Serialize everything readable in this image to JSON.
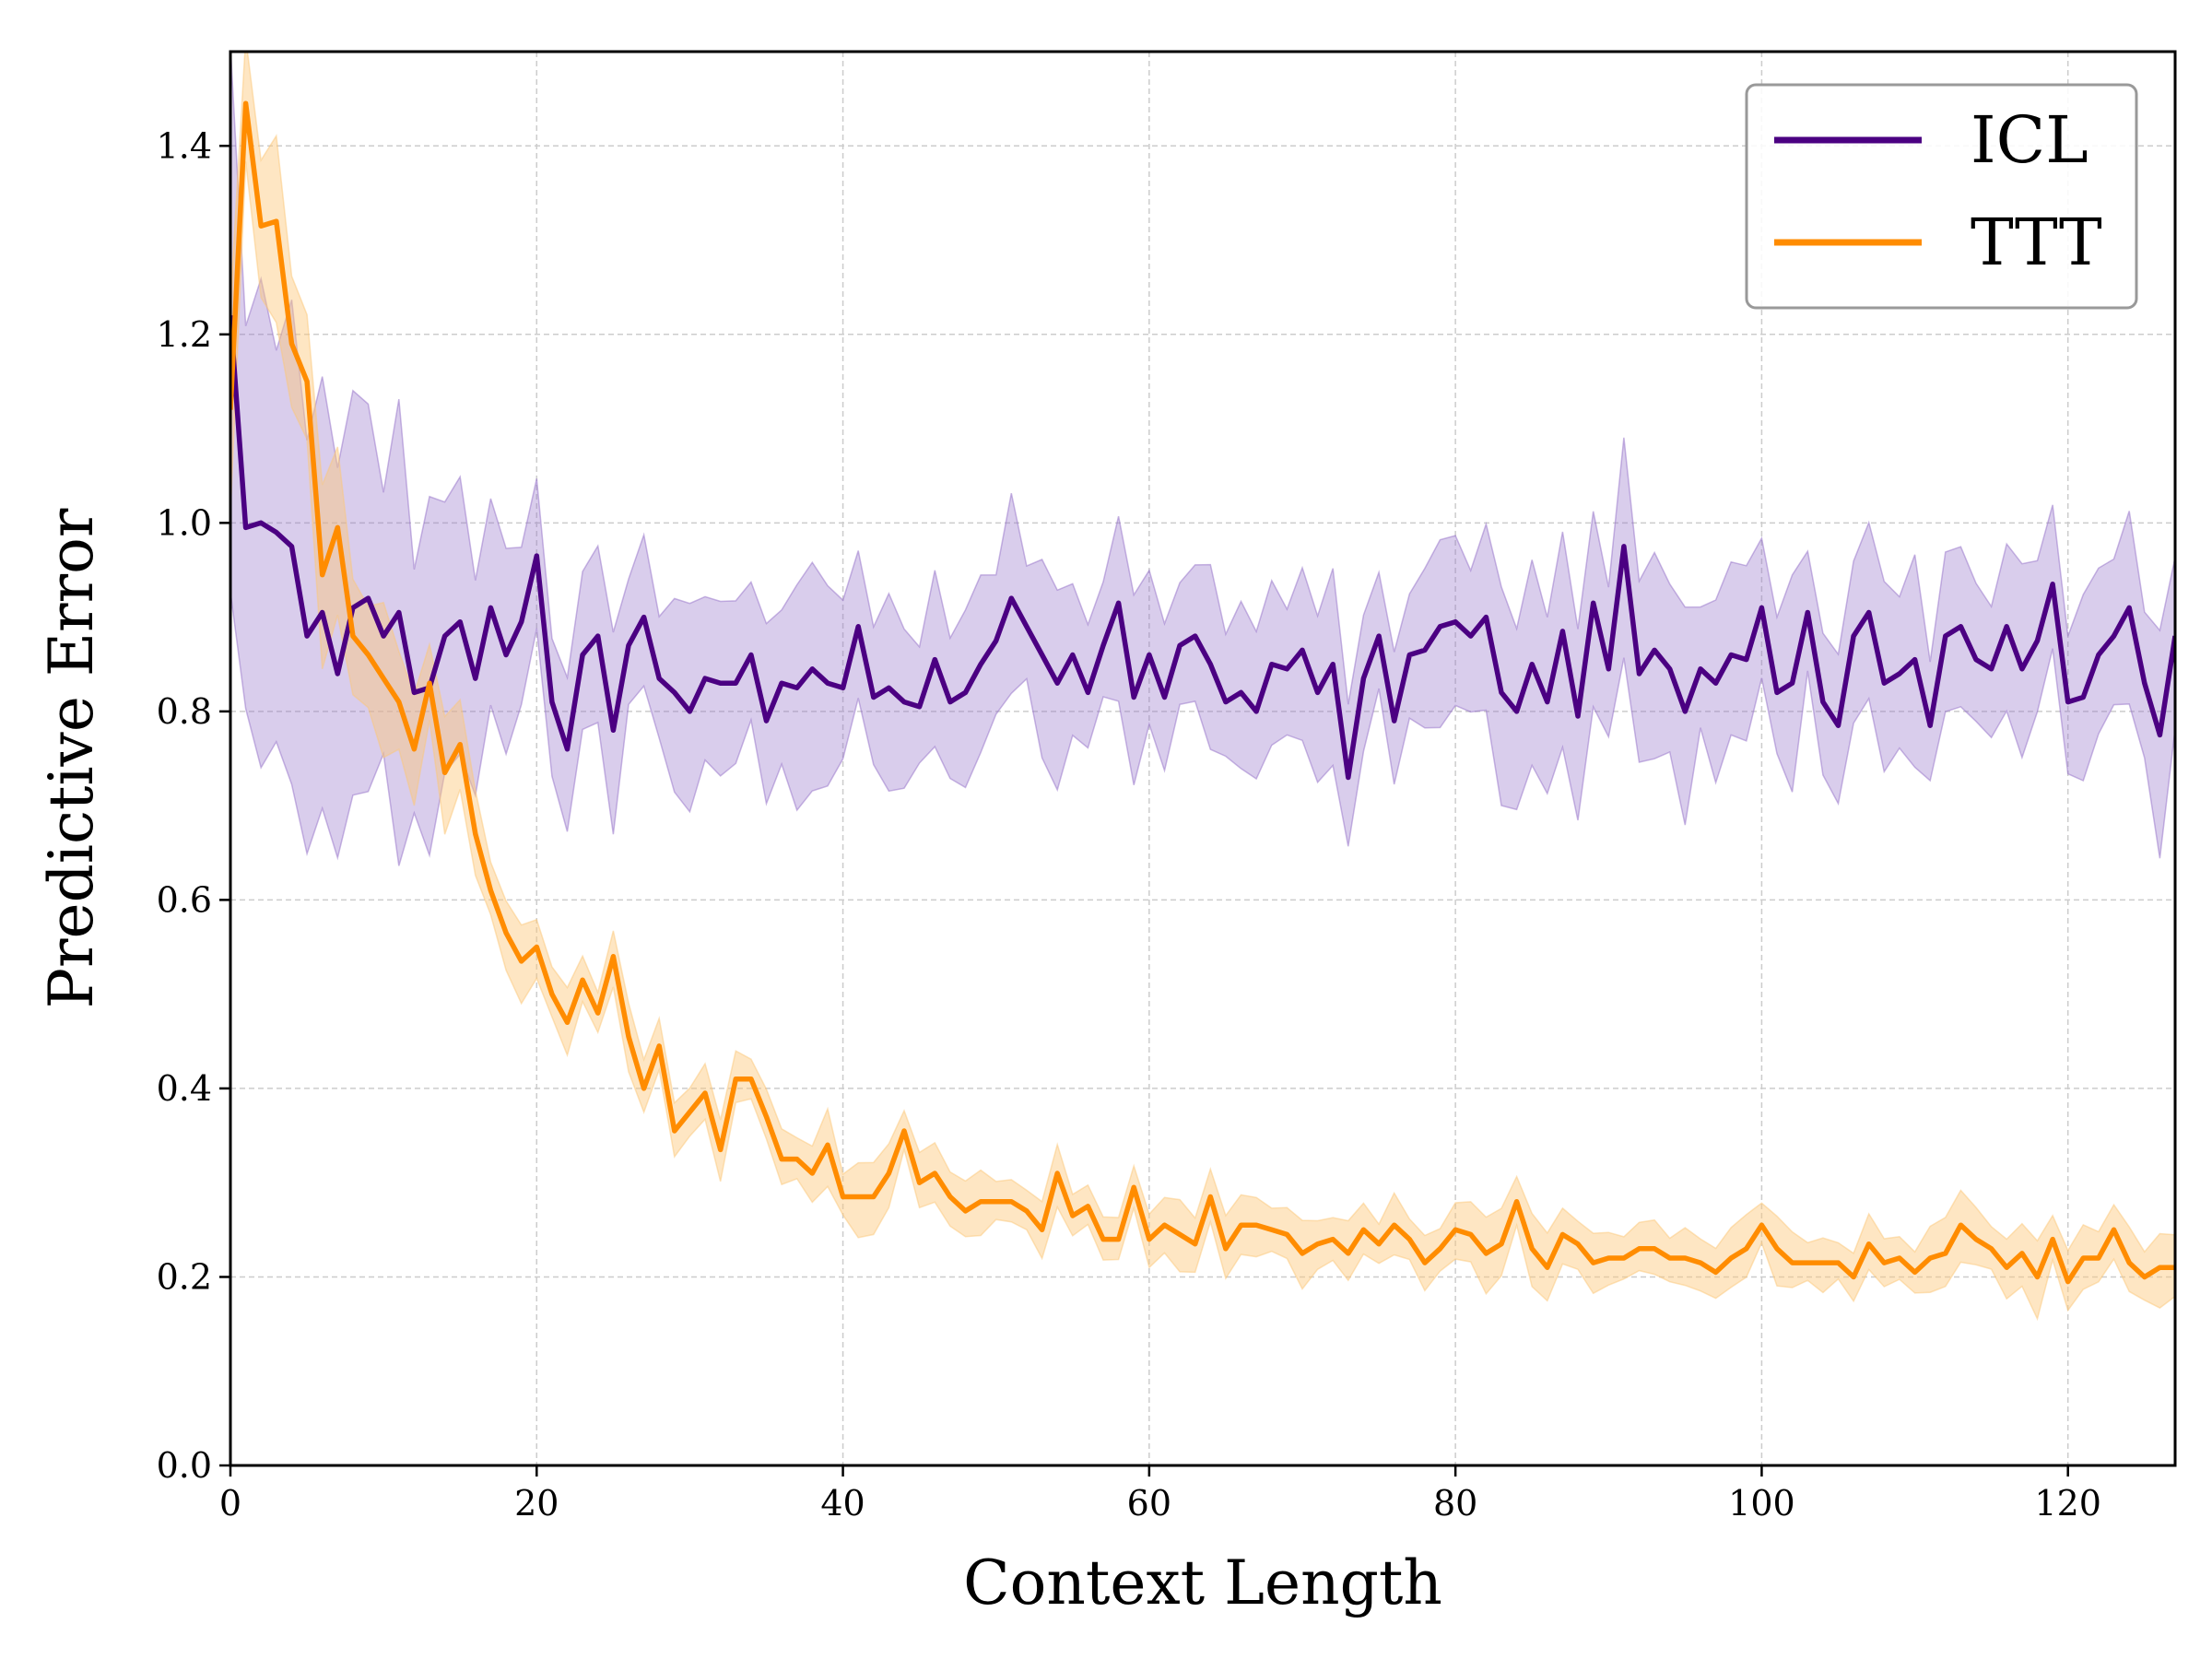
{
  "chart_data": {
    "type": "line",
    "title": "",
    "xlabel": "Context Length",
    "ylabel": "Predictive Error",
    "xlim": [
      0,
      127
    ],
    "ylim": [
      0.0,
      1.5
    ],
    "xticks": [
      0,
      20,
      40,
      60,
      80,
      100,
      120
    ],
    "yticks": [
      0.0,
      0.2,
      0.4,
      0.6,
      0.8,
      1.0,
      1.2,
      1.4
    ],
    "x_tick_labels": [
      "0",
      "20",
      "40",
      "60",
      "80",
      "100",
      "120"
    ],
    "y_tick_labels": [
      "0.0",
      "0.2",
      "0.4",
      "0.6",
      "0.8",
      "1.0",
      "1.2",
      "1.4"
    ],
    "grid": true,
    "legend_position": "top-right",
    "series": [
      {
        "name": "ICL",
        "color": "#4b0082",
        "band_color": "#9370c8",
        "values": [
          1.22,
          0.995,
          1.0,
          0.99,
          0.975,
          0.88,
          0.905,
          0.84,
          0.91,
          0.92,
          0.88,
          0.905,
          0.82,
          0.825,
          0.88,
          0.895,
          0.835,
          0.91,
          0.86,
          0.895,
          0.965,
          0.81,
          0.76,
          0.86,
          0.88,
          0.78,
          0.87,
          0.9,
          0.835,
          0.82,
          0.8,
          0.835,
          0.83,
          0.83,
          0.86,
          0.79,
          0.83,
          0.825,
          0.845,
          0.83,
          0.825,
          0.89,
          0.815,
          0.825,
          0.81,
          0.805,
          0.855,
          0.81,
          0.82,
          0.85,
          0.875,
          0.92,
          0.89,
          0.86,
          0.83,
          0.86,
          0.82,
          0.87,
          0.915,
          0.815,
          0.86,
          0.815,
          0.87,
          0.88,
          0.85,
          0.81,
          0.82,
          0.8,
          0.85,
          0.845,
          0.865,
          0.82,
          0.85,
          0.73,
          0.835,
          0.88,
          0.79,
          0.86,
          0.865,
          0.89,
          0.895,
          0.88,
          0.9,
          0.82,
          0.8,
          0.85,
          0.81,
          0.885,
          0.795,
          0.915,
          0.845,
          0.975,
          0.84,
          0.865,
          0.845,
          0.8,
          0.845,
          0.83,
          0.86,
          0.855,
          0.91,
          0.82,
          0.83,
          0.905,
          0.81,
          0.785,
          0.88,
          0.905,
          0.83,
          0.84,
          0.855,
          0.785,
          0.88,
          0.89,
          0.855,
          0.845,
          0.89,
          0.845,
          0.875,
          0.935,
          0.81,
          0.815,
          0.86,
          0.88,
          0.91,
          0.83,
          0.775,
          0.88
        ],
        "band_halfwidth": 0.09
      },
      {
        "name": "TTT",
        "color": "#ff8c00",
        "band_color": "#fcc77a",
        "values": [
          1.12,
          1.445,
          1.315,
          1.32,
          1.19,
          1.15,
          0.945,
          0.995,
          0.88,
          0.86,
          0.835,
          0.81,
          0.76,
          0.83,
          0.735,
          0.765,
          0.67,
          0.61,
          0.565,
          0.535,
          0.55,
          0.5,
          0.47,
          0.515,
          0.48,
          0.54,
          0.455,
          0.4,
          0.445,
          0.355,
          0.375,
          0.395,
          0.335,
          0.41,
          0.41,
          0.37,
          0.325,
          0.325,
          0.31,
          0.34,
          0.285,
          0.285,
          0.285,
          0.31,
          0.355,
          0.3,
          0.31,
          0.285,
          0.27,
          0.28,
          0.28,
          0.28,
          0.27,
          0.25,
          0.31,
          0.265,
          0.275,
          0.24,
          0.24,
          0.295,
          0.24,
          0.255,
          0.245,
          0.235,
          0.285,
          0.23,
          0.255,
          0.255,
          0.25,
          0.245,
          0.225,
          0.235,
          0.24,
          0.225,
          0.25,
          0.235,
          0.255,
          0.24,
          0.215,
          0.23,
          0.25,
          0.245,
          0.225,
          0.235,
          0.28,
          0.23,
          0.21,
          0.245,
          0.235,
          0.215,
          0.22,
          0.22,
          0.23,
          0.23,
          0.22,
          0.22,
          0.215,
          0.205,
          0.22,
          0.23,
          0.255,
          0.23,
          0.215,
          0.215,
          0.215,
          0.215,
          0.2,
          0.235,
          0.215,
          0.22,
          0.205,
          0.22,
          0.225,
          0.255,
          0.24,
          0.23,
          0.21,
          0.225,
          0.2,
          0.24,
          0.195,
          0.22,
          0.22,
          0.25,
          0.215,
          0.2,
          0.21,
          0.21
        ],
        "band_halfwidth": 0.03
      }
    ]
  }
}
